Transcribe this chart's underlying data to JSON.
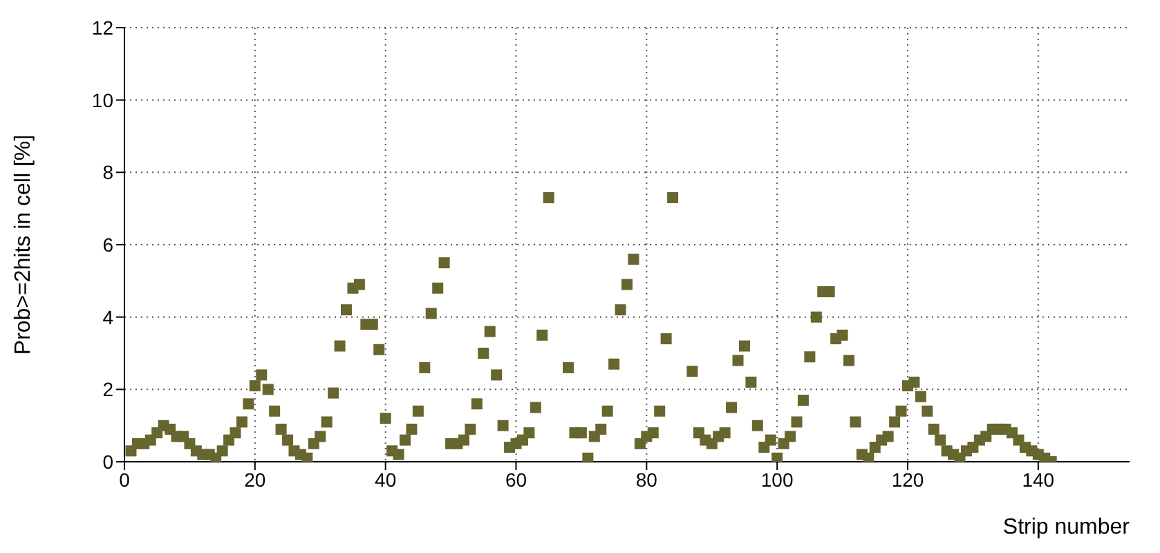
{
  "chart_data": {
    "type": "scatter",
    "xlabel": "Strip number",
    "ylabel": "Prob>=2hits in cell [%]",
    "x": [
      1,
      2,
      3,
      4,
      5,
      6,
      7,
      8,
      9,
      10,
      11,
      12,
      13,
      14,
      15,
      16,
      17,
      18,
      19,
      20,
      21,
      22,
      23,
      24,
      25,
      26,
      27,
      28,
      29,
      30,
      31,
      32,
      33,
      34,
      35,
      36,
      37,
      38,
      39,
      40,
      41,
      42,
      43,
      44,
      45,
      46,
      47,
      48,
      49,
      50,
      51,
      52,
      53,
      54,
      55,
      56,
      57,
      58,
      59,
      60,
      61,
      62,
      63,
      64,
      65,
      68,
      69,
      70,
      71,
      72,
      73,
      74,
      75,
      76,
      77,
      78,
      79,
      80,
      81,
      82,
      83,
      84,
      87,
      88,
      89,
      90,
      91,
      92,
      93,
      94,
      95,
      96,
      97,
      98,
      99,
      100,
      101,
      102,
      103,
      104,
      105,
      106,
      107,
      108,
      109,
      110,
      111,
      112,
      113,
      114,
      115,
      116,
      117,
      118,
      119,
      120,
      121,
      122,
      123,
      124,
      125,
      126,
      127,
      128,
      129,
      130,
      131,
      132,
      133,
      134,
      135,
      136,
      137,
      138,
      139,
      140,
      141,
      142
    ],
    "series": [
      {
        "color": "#66662e",
        "values": [
          0.3,
          0.5,
          0.5,
          0.6,
          0.8,
          1.0,
          0.9,
          0.7,
          0.7,
          0.5,
          0.3,
          0.2,
          0.2,
          0.1,
          0.3,
          0.6,
          0.8,
          1.1,
          1.6,
          2.1,
          2.4,
          2.0,
          1.4,
          0.9,
          0.6,
          0.3,
          0.2,
          0.1,
          0.5,
          0.7,
          1.1,
          1.9,
          3.2,
          4.2,
          4.8,
          4.9,
          3.8,
          3.8,
          3.1,
          1.2,
          0.3,
          0.2,
          0.6,
          0.9,
          1.4,
          2.6,
          4.1,
          4.8,
          5.5,
          0.5,
          0.5,
          0.6,
          0.9,
          1.6,
          3.0,
          3.6,
          2.4,
          1.0,
          0.4,
          0.5,
          0.6,
          0.8,
          1.5,
          3.5,
          7.3,
          2.6,
          0.8,
          0.8,
          0.1,
          0.7,
          0.9,
          1.4,
          2.7,
          4.2,
          4.9,
          5.6,
          0.5,
          0.7,
          0.8,
          1.4,
          3.4,
          7.3,
          2.5,
          0.8,
          0.6,
          0.5,
          0.7,
          0.8,
          1.5,
          2.8,
          3.2,
          2.2,
          1.0,
          0.4,
          0.6,
          0.1,
          0.5,
          0.7,
          1.1,
          1.7,
          2.9,
          4.0,
          4.7,
          4.7,
          3.4,
          3.5,
          2.8,
          1.1,
          0.2,
          0.1,
          0.4,
          0.6,
          0.7,
          1.1,
          1.4,
          2.1,
          2.2,
          1.8,
          1.4,
          0.9,
          0.6,
          0.3,
          0.2,
          0.1,
          0.3,
          0.4,
          0.6,
          0.7,
          0.9,
          0.9,
          0.9,
          0.8,
          0.6,
          0.4,
          0.3,
          0.2,
          0.1,
          0.0
        ]
      }
    ],
    "xlim": [
      0,
      154
    ],
    "xticks": [
      0,
      20,
      40,
      60,
      80,
      100,
      120,
      140
    ],
    "ylim": [
      0,
      12
    ],
    "yticks": [
      0,
      2,
      4,
      6,
      8,
      10,
      12
    ],
    "grid": true,
    "legend": false,
    "marker": "square"
  }
}
